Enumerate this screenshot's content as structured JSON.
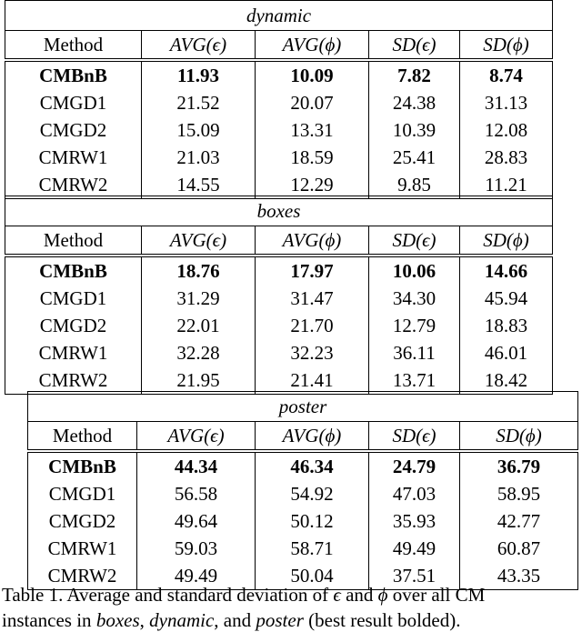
{
  "tables": [
    {
      "title": "dynamic",
      "header": [
        "Method",
        "AVG(ϵ)",
        "AVG(ϕ)",
        "SD(ϵ)",
        "SD(ϕ)"
      ],
      "rows": [
        [
          "CMBnB",
          "11.93",
          "10.09",
          "7.82",
          "8.74"
        ],
        [
          "CMGD1",
          "21.52",
          "20.07",
          "24.38",
          "31.13"
        ],
        [
          "CMGD2",
          "15.09",
          "13.31",
          "10.39",
          "12.08"
        ],
        [
          "CMRW1",
          "21.03",
          "18.59",
          "25.41",
          "28.83"
        ],
        [
          "CMRW2",
          "14.55",
          "12.29",
          "9.85",
          "11.21"
        ]
      ]
    },
    {
      "title": "boxes",
      "header": [
        "Method",
        "AVG(ϵ)",
        "AVG(ϕ)",
        "SD(ϵ)",
        "SD(ϕ)"
      ],
      "rows": [
        [
          "CMBnB",
          "18.76",
          "17.97",
          "10.06",
          "14.66"
        ],
        [
          "CMGD1",
          "31.29",
          "31.47",
          "34.30",
          "45.94"
        ],
        [
          "CMGD2",
          "22.01",
          "21.70",
          "12.79",
          "18.83"
        ],
        [
          "CMRW1",
          "32.28",
          "32.23",
          "36.11",
          "46.01"
        ],
        [
          "CMRW2",
          "21.95",
          "21.41",
          "13.71",
          "18.42"
        ]
      ]
    },
    {
      "title": "poster",
      "header": [
        "Method",
        "AVG(ϵ)",
        "AVG(ϕ)",
        "SD(ϵ)",
        "SD(ϕ)"
      ],
      "rows": [
        [
          "CMBnB",
          "44.34",
          "46.34",
          "24.79",
          "36.79"
        ],
        [
          "CMGD1",
          "56.58",
          "54.92",
          "47.03",
          "58.95"
        ],
        [
          "CMGD2",
          "49.64",
          "50.12",
          "35.93",
          "42.77"
        ],
        [
          "CMRW1",
          "59.03",
          "58.71",
          "49.49",
          "60.87"
        ],
        [
          "CMRW2",
          "49.49",
          "50.04",
          "37.51",
          "43.35"
        ]
      ]
    }
  ],
  "caption": {
    "line1": [
      "Table 1. Average and standard deviation of ",
      "ϵ",
      " and ",
      "ϕ",
      " over all CM"
    ],
    "line2": [
      "instances in ",
      "boxes",
      ", ",
      "dynamic",
      ", and ",
      "poster",
      " (best result bolded)."
    ]
  }
}
